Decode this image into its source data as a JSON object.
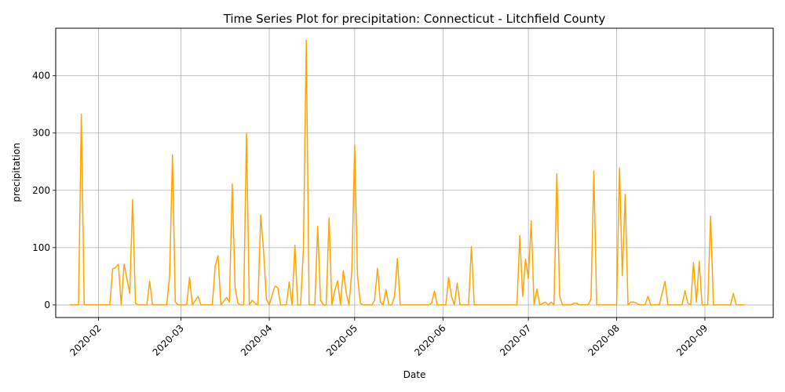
{
  "chart_data": {
    "type": "line",
    "title": "Time Series Plot for precipitation: Connecticut - Litchfield County",
    "xlabel": "Date",
    "ylabel": "precipitation",
    "grid": true,
    "line_color": "#FFA500",
    "xlim": [
      "2020-01-17",
      "2020-09-25"
    ],
    "ylim": [
      -22,
      483
    ],
    "y_ticks": [
      0,
      100,
      200,
      300,
      400
    ],
    "x_ticks": [
      {
        "date": "2020-02-01",
        "label": "2020-02"
      },
      {
        "date": "2020-03-01",
        "label": "2020-03"
      },
      {
        "date": "2020-04-01",
        "label": "2020-04"
      },
      {
        "date": "2020-05-01",
        "label": "2020-05"
      },
      {
        "date": "2020-06-01",
        "label": "2020-06"
      },
      {
        "date": "2020-07-01",
        "label": "2020-07"
      },
      {
        "date": "2020-08-01",
        "label": "2020-08"
      },
      {
        "date": "2020-09-01",
        "label": "2020-09"
      }
    ],
    "series": [
      {
        "values": [
          [
            "2020-01-22",
            0
          ],
          [
            "2020-01-25",
            0
          ],
          [
            "2020-01-26",
            333
          ],
          [
            "2020-01-27",
            0
          ],
          [
            "2020-02-05",
            0
          ],
          [
            "2020-02-06",
            63
          ],
          [
            "2020-02-07",
            65
          ],
          [
            "2020-02-08",
            71
          ],
          [
            "2020-02-09",
            0
          ],
          [
            "2020-02-10",
            71
          ],
          [
            "2020-02-12",
            20
          ],
          [
            "2020-02-13",
            184
          ],
          [
            "2020-02-14",
            3
          ],
          [
            "2020-02-15",
            0
          ],
          [
            "2020-02-18",
            0
          ],
          [
            "2020-02-19",
            41
          ],
          [
            "2020-02-20",
            0
          ],
          [
            "2020-02-25",
            0
          ],
          [
            "2020-02-26",
            52
          ],
          [
            "2020-02-27",
            262
          ],
          [
            "2020-02-28",
            5
          ],
          [
            "2020-02-29",
            0
          ],
          [
            "2020-03-03",
            0
          ],
          [
            "2020-03-04",
            48
          ],
          [
            "2020-03-05",
            0
          ],
          [
            "2020-03-07",
            15
          ],
          [
            "2020-03-08",
            0
          ],
          [
            "2020-03-12",
            0
          ],
          [
            "2020-03-13",
            68
          ],
          [
            "2020-03-14",
            86
          ],
          [
            "2020-03-15",
            0
          ],
          [
            "2020-03-17",
            13
          ],
          [
            "2020-03-18",
            5
          ],
          [
            "2020-03-19",
            211
          ],
          [
            "2020-03-20",
            30
          ],
          [
            "2020-03-21",
            3
          ],
          [
            "2020-03-22",
            0
          ],
          [
            "2020-03-23",
            0
          ],
          [
            "2020-03-24",
            300
          ],
          [
            "2020-03-25",
            0
          ],
          [
            "2020-03-26",
            8
          ],
          [
            "2020-03-27",
            3
          ],
          [
            "2020-03-28",
            0
          ],
          [
            "2020-03-29",
            157
          ],
          [
            "2020-03-30",
            95
          ],
          [
            "2020-03-31",
            10
          ],
          [
            "2020-04-01",
            0
          ],
          [
            "2020-04-03",
            33
          ],
          [
            "2020-04-04",
            30
          ],
          [
            "2020-04-05",
            0
          ],
          [
            "2020-04-07",
            0
          ],
          [
            "2020-04-08",
            40
          ],
          [
            "2020-04-09",
            0
          ],
          [
            "2020-04-10",
            104
          ],
          [
            "2020-04-11",
            0
          ],
          [
            "2020-04-12",
            0
          ],
          [
            "2020-04-13",
            100
          ],
          [
            "2020-04-14",
            462
          ],
          [
            "2020-04-15",
            0
          ],
          [
            "2020-04-17",
            0
          ],
          [
            "2020-04-18",
            137
          ],
          [
            "2020-04-19",
            8
          ],
          [
            "2020-04-20",
            0
          ],
          [
            "2020-04-21",
            0
          ],
          [
            "2020-04-22",
            152
          ],
          [
            "2020-04-23",
            0
          ],
          [
            "2020-04-24",
            25
          ],
          [
            "2020-04-25",
            42
          ],
          [
            "2020-04-26",
            0
          ],
          [
            "2020-04-27",
            60
          ],
          [
            "2020-04-28",
            22
          ],
          [
            "2020-04-29",
            0
          ],
          [
            "2020-04-30",
            60
          ],
          [
            "2020-05-01",
            279
          ],
          [
            "2020-05-02",
            50
          ],
          [
            "2020-05-03",
            3
          ],
          [
            "2020-05-04",
            0
          ],
          [
            "2020-05-07",
            0
          ],
          [
            "2020-05-08",
            8
          ],
          [
            "2020-05-09",
            64
          ],
          [
            "2020-05-10",
            5
          ],
          [
            "2020-05-11",
            0
          ],
          [
            "2020-05-12",
            27
          ],
          [
            "2020-05-13",
            0
          ],
          [
            "2020-05-14",
            0
          ],
          [
            "2020-05-15",
            15
          ],
          [
            "2020-05-16",
            81
          ],
          [
            "2020-05-17",
            0
          ],
          [
            "2020-05-27",
            0
          ],
          [
            "2020-05-28",
            3
          ],
          [
            "2020-05-29",
            24
          ],
          [
            "2020-05-30",
            0
          ],
          [
            "2020-06-01",
            0
          ],
          [
            "2020-06-02",
            0
          ],
          [
            "2020-06-03",
            48
          ],
          [
            "2020-06-04",
            15
          ],
          [
            "2020-06-05",
            0
          ],
          [
            "2020-06-06",
            38
          ],
          [
            "2020-06-07",
            0
          ],
          [
            "2020-06-10",
            0
          ],
          [
            "2020-06-11",
            102
          ],
          [
            "2020-06-12",
            0
          ],
          [
            "2020-06-27",
            0
          ],
          [
            "2020-06-28",
            121
          ],
          [
            "2020-06-29",
            15
          ],
          [
            "2020-06-30",
            80
          ],
          [
            "2020-07-01",
            46
          ],
          [
            "2020-07-02",
            147
          ],
          [
            "2020-07-03",
            0
          ],
          [
            "2020-07-04",
            28
          ],
          [
            "2020-07-05",
            0
          ],
          [
            "2020-07-07",
            5
          ],
          [
            "2020-07-08",
            0
          ],
          [
            "2020-07-09",
            5
          ],
          [
            "2020-07-10",
            0
          ],
          [
            "2020-07-11",
            229
          ],
          [
            "2020-07-12",
            15
          ],
          [
            "2020-07-13",
            0
          ],
          [
            "2020-07-16",
            0
          ],
          [
            "2020-07-17",
            3
          ],
          [
            "2020-07-18",
            3
          ],
          [
            "2020-07-19",
            0
          ],
          [
            "2020-07-22",
            0
          ],
          [
            "2020-07-23",
            10
          ],
          [
            "2020-07-24",
            234
          ],
          [
            "2020-07-25",
            0
          ],
          [
            "2020-07-31",
            0
          ],
          [
            "2020-08-01",
            0
          ],
          [
            "2020-08-02",
            239
          ],
          [
            "2020-08-03",
            51
          ],
          [
            "2020-08-04",
            193
          ],
          [
            "2020-08-05",
            0
          ],
          [
            "2020-08-06",
            5
          ],
          [
            "2020-08-07",
            5
          ],
          [
            "2020-08-08",
            3
          ],
          [
            "2020-08-09",
            0
          ],
          [
            "2020-08-11",
            0
          ],
          [
            "2020-08-12",
            15
          ],
          [
            "2020-08-13",
            0
          ],
          [
            "2020-08-16",
            0
          ],
          [
            "2020-08-18",
            41
          ],
          [
            "2020-08-19",
            0
          ],
          [
            "2020-08-24",
            0
          ],
          [
            "2020-08-25",
            25
          ],
          [
            "2020-08-26",
            3
          ],
          [
            "2020-08-27",
            0
          ],
          [
            "2020-08-28",
            74
          ],
          [
            "2020-08-29",
            5
          ],
          [
            "2020-08-30",
            76
          ],
          [
            "2020-08-31",
            0
          ],
          [
            "2020-09-01",
            0
          ],
          [
            "2020-09-02",
            0
          ],
          [
            "2020-09-03",
            155
          ],
          [
            "2020-09-04",
            0
          ],
          [
            "2020-09-10",
            0
          ],
          [
            "2020-09-11",
            20
          ],
          [
            "2020-09-12",
            0
          ],
          [
            "2020-09-15",
            0
          ]
        ]
      }
    ]
  }
}
